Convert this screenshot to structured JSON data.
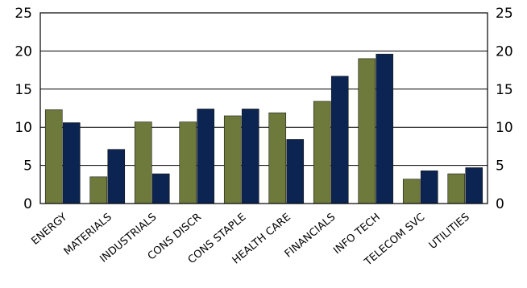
{
  "chart_data": {
    "type": "bar",
    "categories": [
      "ENERGY",
      "MATERIALS",
      "INDUSTRIALS",
      "CONS DISCR",
      "CONS STAPLE",
      "HEALTH CARE",
      "FINANCIALS",
      "INFO TECH",
      "TELECOM SVC",
      "UTILITIES"
    ],
    "series": [
      {
        "values": [
          12.3,
          3.5,
          10.7,
          10.7,
          11.5,
          11.9,
          13.4,
          19.0,
          3.2,
          3.9
        ],
        "color": "#6e7a3b"
      },
      {
        "values": [
          10.6,
          7.1,
          3.9,
          12.4,
          12.4,
          8.4,
          16.7,
          19.6,
          4.3,
          4.7
        ],
        "color": "#0c2451"
      }
    ],
    "ylim": [
      0,
      25
    ],
    "yticks": [
      "0",
      "5",
      "10",
      "15",
      "20",
      "25"
    ],
    "grid": true,
    "axes": "left and right"
  }
}
